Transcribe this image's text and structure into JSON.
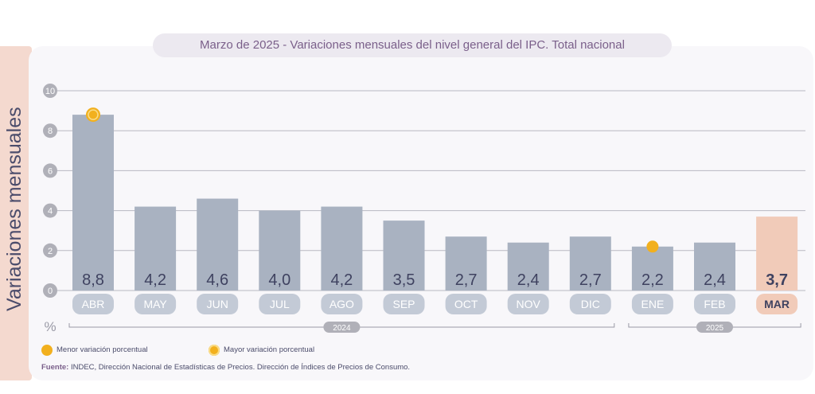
{
  "title": "Marzo de 2025 - Variaciones mensuales del nivel general del IPC. Total nacional",
  "side_label": "Variaciones mensuales",
  "unit_label": "%",
  "legend": {
    "min_label": "Menor variación porcentual",
    "max_label": "Mayor variación porcentual"
  },
  "source": {
    "prefix": "Fuente:",
    "text": "INDEC, Dirección Nacional de Estadísticas de Precios. Dirección de Índices de Precios de Consumo."
  },
  "colors": {
    "bar": "#a9b2c1",
    "bar_highlight": "#f1cbb9",
    "label_text": "#3f4260",
    "grid": "#b9b9c2",
    "marker": "#f2b01e",
    "tick_circle": "#b0b0b8"
  },
  "chart_data": {
    "type": "bar",
    "categories": [
      "ABR",
      "MAY",
      "JUN",
      "JUL",
      "AGO",
      "SEP",
      "OCT",
      "NOV",
      "DIC",
      "ENE",
      "FEB",
      "MAR"
    ],
    "values": [
      8.8,
      4.2,
      4.6,
      4.0,
      4.2,
      3.5,
      2.7,
      2.4,
      2.7,
      2.2,
      2.4,
      3.7
    ],
    "value_labels": [
      "8,8",
      "4,2",
      "4,6",
      "4,0",
      "4,2",
      "3,5",
      "2,7",
      "2,4",
      "2,7",
      "2,2",
      "2,4",
      "3,7"
    ],
    "ylim": [
      0,
      10
    ],
    "yticks": [
      0,
      2,
      4,
      6,
      8,
      10
    ],
    "highlight_index": 11,
    "max_marker_index": 0,
    "min_marker_index": 9,
    "year_groups": [
      {
        "label": "2024",
        "from": 0,
        "to": 8
      },
      {
        "label": "2025",
        "from": 9,
        "to": 11
      }
    ],
    "grid": true
  }
}
